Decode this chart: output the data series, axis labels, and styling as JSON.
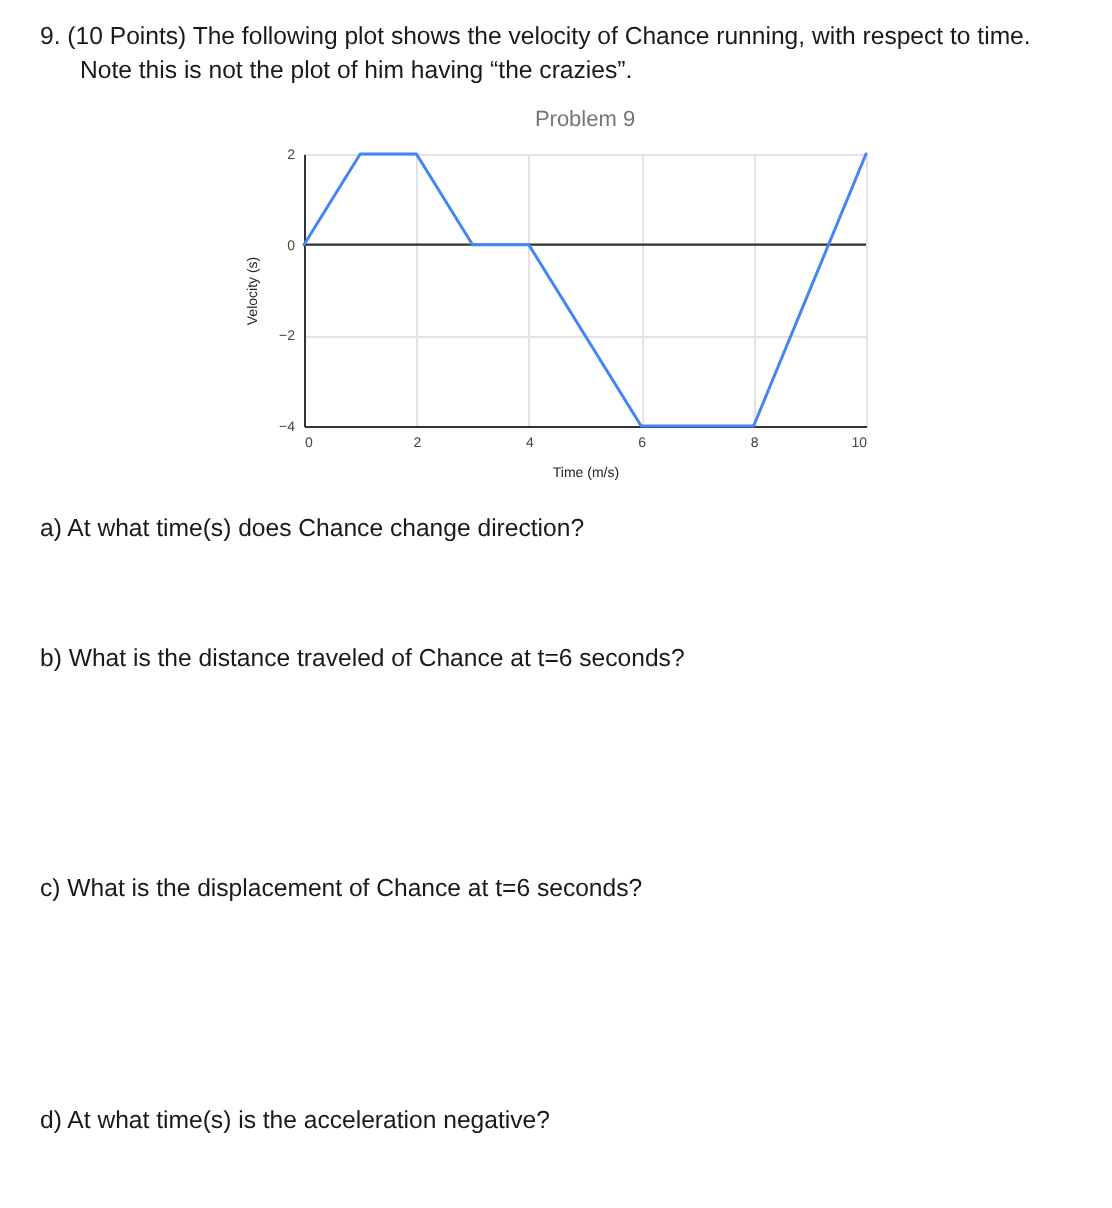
{
  "chart_data": {
    "type": "line",
    "title": "Problem 9",
    "xlabel": "Time (m/s)",
    "ylabel": "Velocity (s)",
    "x": [
      0,
      1,
      2,
      3,
      4,
      6,
      8,
      10
    ],
    "series": [
      {
        "color": "#4285f4",
        "values": [
          0,
          2,
          2,
          0,
          0,
          -4,
          -4,
          2
        ]
      }
    ],
    "xlim": [
      0,
      10
    ],
    "ylim": [
      -4,
      2
    ],
    "xticks": [
      0,
      2,
      4,
      6,
      8,
      10
    ],
    "yticks": [
      -4,
      -2,
      0,
      2
    ],
    "grid": true,
    "line_style": "solid",
    "ref_lines": [
      {
        "axis": "y",
        "value": 0,
        "color": "#333333"
      }
    ],
    "annotations": [
      "9. (10 Points) The following plot shows the velocity of Chance running, with respect to time.",
      "Note this is not the plot of him having “the crazies”.",
      "a)  At what time(s) does Chance change direction?",
      "b)  What is the distance traveled of Chance at t=6 seconds?",
      "c)  What is the displacement of Chance at t=6 seconds?",
      "d)  At what time(s) is the acceleration negative?"
    ]
  }
}
